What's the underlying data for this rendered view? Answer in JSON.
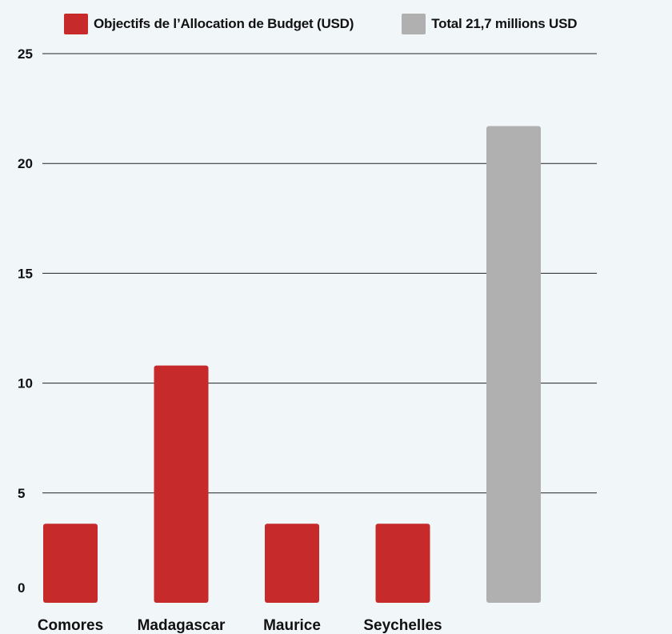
{
  "legend": [
    {
      "label": "Objectifs de l’Allocation de Budget (USD)",
      "color": "#c62a2a"
    },
    {
      "label": "Total 21,7 millions USD",
      "color": "#b0b0b0"
    }
  ],
  "chart_data": {
    "type": "bar",
    "categories": [
      "Comores",
      "Madagascar",
      "Maurice",
      "Seychelles",
      ""
    ],
    "series": [
      {
        "name": "Objectifs de l’Allocation de Budget (USD)",
        "values": [
          3.6,
          10.8,
          3.6,
          3.6,
          null
        ],
        "color": "#c62a2a"
      },
      {
        "name": "Total 21,7 millions USD",
        "values": [
          null,
          null,
          null,
          null,
          21.7
        ],
        "color": "#b0b0b0"
      }
    ],
    "y_ticks": [
      "0",
      "5",
      "10",
      "15",
      "20",
      "25"
    ],
    "ylim": [
      0,
      25
    ],
    "grid": true,
    "legend_position": "top"
  }
}
